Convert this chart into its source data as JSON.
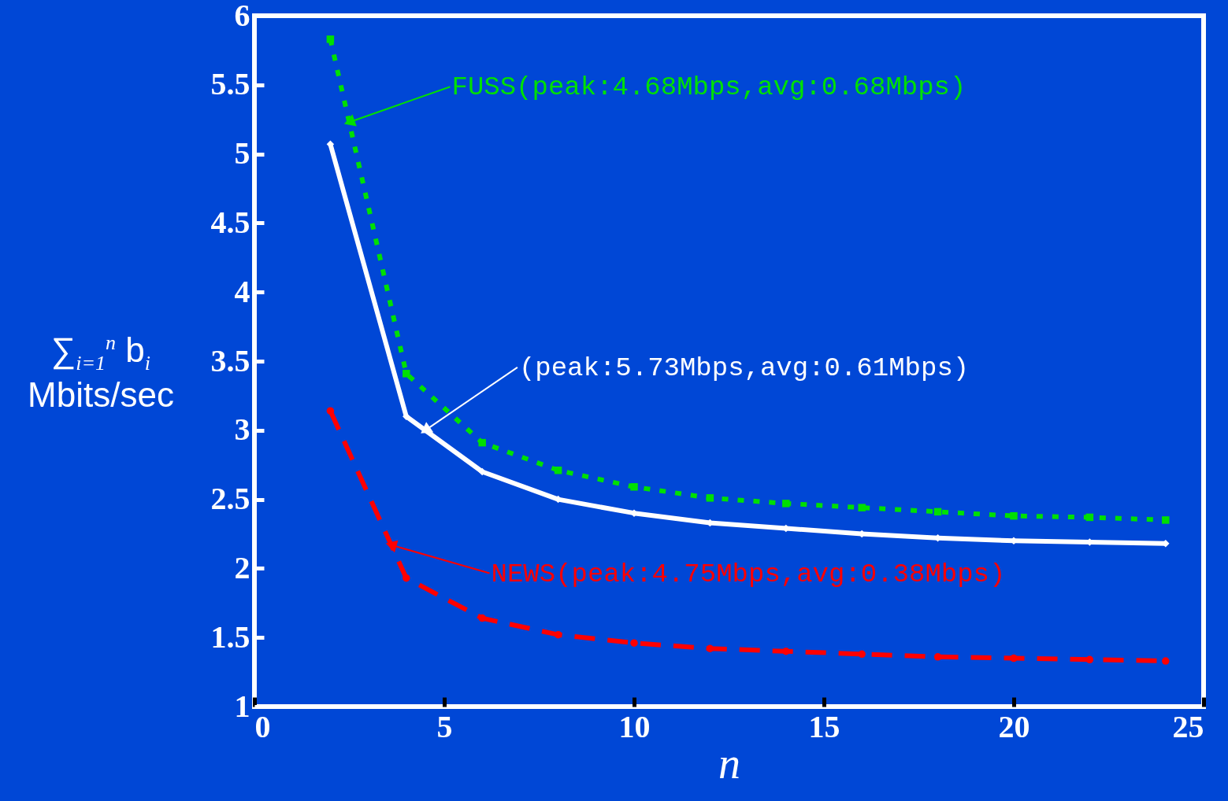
{
  "chart_data": {
    "type": "line",
    "xlabel": "n",
    "ylabel": "∑$_{i=1}$$^{n}$ b$_{i}$ Mbits/sec",
    "x": [
      2,
      4,
      6,
      8,
      10,
      12,
      14,
      16,
      18,
      20,
      22,
      24
    ],
    "xlim": [
      0,
      25
    ],
    "xticks": [
      0,
      5,
      10,
      15,
      20,
      25
    ],
    "ylim": [
      1,
      6
    ],
    "yticks": [
      1,
      1.5,
      2,
      2.5,
      3,
      3.5,
      4,
      4.5,
      5,
      5.5,
      6
    ],
    "grid": false,
    "series": [
      {
        "color": "#00e000",
        "line_style": "dotted",
        "marker": "square",
        "values": [
          5.83,
          3.41,
          2.91,
          2.71,
          2.59,
          2.51,
          2.47,
          2.44,
          2.41,
          2.38,
          2.37,
          2.35
        ]
      },
      {
        "color": "#ffffff",
        "line_style": "solid",
        "marker": "diamond",
        "values": [
          5.07,
          3.1,
          2.7,
          2.5,
          2.4,
          2.33,
          2.29,
          2.25,
          2.22,
          2.2,
          2.19,
          2.18
        ]
      },
      {
        "color": "#ff0000",
        "line_style": "dashed",
        "marker": "circle",
        "values": [
          3.14,
          1.93,
          1.64,
          1.52,
          1.46,
          1.42,
          1.4,
          1.38,
          1.36,
          1.35,
          1.34,
          1.33
        ]
      }
    ],
    "annotations": [
      {
        "text": "FUSS(peak:4.68Mbps,avg:0.68Mbps)",
        "x": 2.5,
        "y": 5.23
      },
      {
        "text": "(peak:5.73Mbps,avg:0.61Mbps)",
        "x": 4.5,
        "y": 3.0
      },
      {
        "text": "NEWS(peak:4.75Mbps,avg:0.38Mbps)",
        "x": 3.6,
        "y": 2.17
      }
    ]
  }
}
